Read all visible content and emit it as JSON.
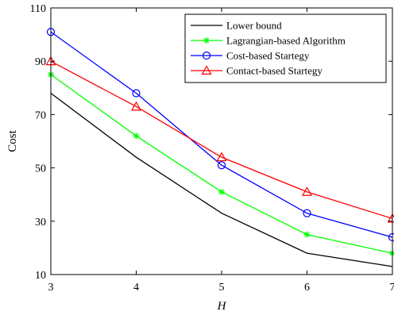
{
  "chart_data": {
    "type": "line",
    "xlabel": "H",
    "ylabel": "Cost",
    "xlim": [
      3,
      7
    ],
    "ylim": [
      10,
      110
    ],
    "x_ticks": [
      3,
      4,
      5,
      6,
      7
    ],
    "y_ticks": [
      10,
      30,
      50,
      70,
      90,
      110
    ],
    "grid": false,
    "legend_position": "top-right",
    "x": [
      3,
      4,
      5,
      6,
      7
    ],
    "series": [
      {
        "name": "Lower bound",
        "values": [
          78,
          54,
          33,
          18,
          13
        ],
        "color": "#000000",
        "marker": "none"
      },
      {
        "name": "Lagrangian-based Algorithm",
        "values": [
          85,
          62,
          41,
          25,
          18
        ],
        "color": "#00ff00",
        "marker": "asterisk"
      },
      {
        "name": "Cost-based Startegy",
        "values": [
          101,
          78,
          51,
          33,
          24
        ],
        "color": "#0000ff",
        "marker": "circle"
      },
      {
        "name": "Contact-based Startegy",
        "values": [
          90,
          73,
          54,
          41,
          31
        ],
        "color": "#ff0000",
        "marker": "triangle"
      }
    ]
  }
}
